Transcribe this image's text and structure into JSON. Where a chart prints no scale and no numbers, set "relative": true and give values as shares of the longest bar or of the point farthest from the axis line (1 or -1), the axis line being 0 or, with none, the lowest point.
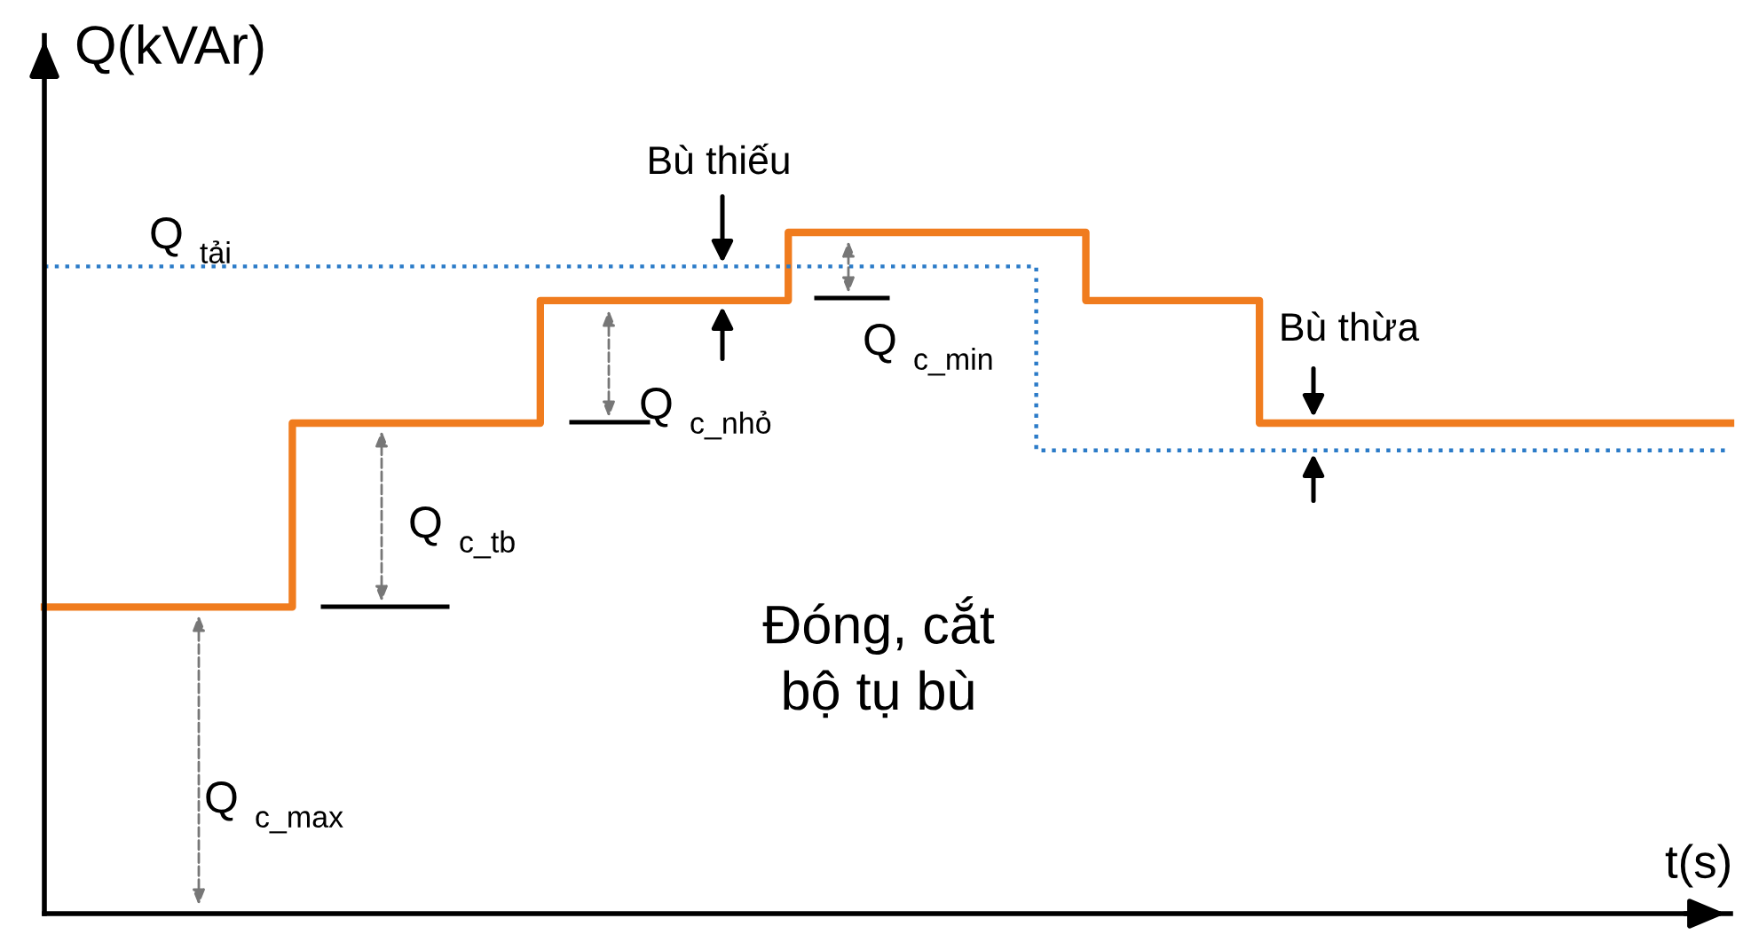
{
  "chart_data": {
    "type": "step",
    "relative": true,
    "xlabel": "t(s)",
    "ylabel": "Q(kVAr)",
    "categories": [
      null,
      null,
      null,
      null,
      null,
      null,
      null,
      null,
      null,
      null,
      null,
      null,
      null,
      null,
      null,
      null,
      null,
      null,
      null,
      null,
      null,
      null,
      null,
      null,
      null,
      null,
      null,
      null,
      null,
      null,
      null,
      null,
      null,
      null,
      null,
      null,
      null,
      null,
      null,
      null,
      null,
      null,
      null,
      null,
      null,
      null,
      null,
      null,
      null,
      null,
      null,
      null,
      null,
      null,
      null,
      null,
      null,
      null,
      null,
      null,
      null,
      null,
      null,
      null,
      null,
      null,
      null,
      null,
      null
    ],
    "series": [
      {
        "values": [
          0.45,
          0.45,
          0.45,
          0.45,
          0.45,
          0.45,
          0.45,
          0.45,
          0.45,
          0.45,
          0.72,
          0.72,
          0.72,
          0.72,
          0.72,
          0.72,
          0.72,
          0.72,
          0.72,
          0.72,
          0.9,
          0.9,
          0.9,
          0.9,
          0.9,
          0.9,
          0.9,
          0.9,
          0.9,
          0.9,
          1.0,
          1.0,
          1.0,
          1.0,
          1.0,
          1.0,
          1.0,
          1.0,
          1.0,
          1.0,
          1.0,
          1.0,
          0.9,
          0.9,
          0.9,
          0.9,
          0.9,
          0.9,
          0.9,
          0.72,
          0.72,
          0.72,
          0.72,
          0.72,
          0.72,
          0.72,
          0.72,
          0.72,
          0.72,
          0.72,
          0.72,
          0.72,
          0.72,
          0.72,
          0.72,
          0.72,
          0.72,
          0.72,
          0.72
        ],
        "color": "#f07c1e",
        "line_style": "solid"
      },
      {
        "values": [
          0.95,
          0.95,
          0.95,
          0.95,
          0.95,
          0.95,
          0.95,
          0.95,
          0.95,
          0.95,
          0.95,
          0.95,
          0.95,
          0.95,
          0.95,
          0.95,
          0.95,
          0.95,
          0.95,
          0.95,
          0.95,
          0.95,
          0.95,
          0.95,
          0.95,
          0.95,
          0.95,
          0.95,
          0.95,
          0.95,
          0.95,
          0.95,
          0.95,
          0.95,
          0.95,
          0.95,
          0.95,
          0.95,
          0.95,
          0.95,
          0.68,
          0.68,
          0.68,
          0.68,
          0.68,
          0.68,
          0.68,
          0.68,
          0.68,
          0.68,
          0.68,
          0.68,
          0.68,
          0.68,
          0.68,
          0.68,
          0.68,
          0.68,
          0.68,
          0.68,
          0.68,
          0.68,
          0.68,
          0.68,
          0.68,
          0.68,
          0.68,
          0.68,
          0.68
        ],
        "color": "#2b7bc8",
        "line_style": "dotted"
      }
    ],
    "annotations": [
      "Q$_{tải}$",
      "Bù thiếu",
      "Q$_{c_min}$",
      "Bù thừa",
      "Q$_{c_nhỏ}$",
      "Q$_{c_tb}$",
      "Q$_{c_max}$",
      "Đóng, cắt\nbộ tụ bù"
    ]
  }
}
